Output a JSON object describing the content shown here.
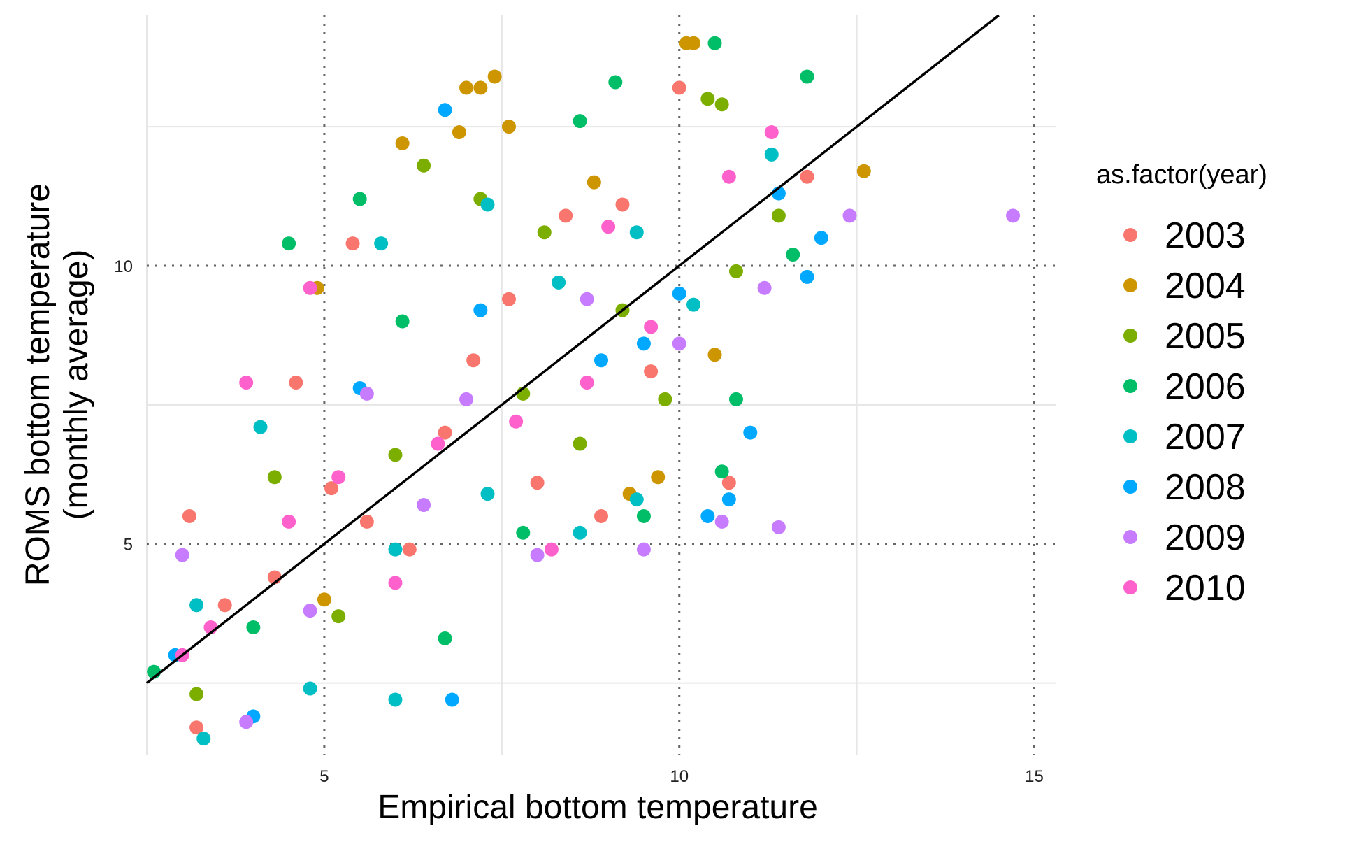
{
  "chart_data": {
    "type": "scatter",
    "xlabel": "Empirical bottom temperature",
    "ylabel_lines": [
      "ROMS bottom temperature",
      "(monthly average)"
    ],
    "xlim": [
      2.5,
      15.3
    ],
    "ylim": [
      1.2,
      14.5
    ],
    "x_ticks": [
      5,
      10,
      15
    ],
    "y_ticks": [
      5,
      10
    ],
    "x_tick_labels": [
      "5",
      "10",
      "15"
    ],
    "y_tick_labels": [
      "5",
      "10"
    ],
    "x_minor_grid": [
      2.5,
      7.5,
      12.5
    ],
    "y_minor_grid": [
      2.5,
      7.5,
      12.5
    ],
    "grid": "major dotted, minor solid light gray",
    "reference_line": {
      "slope": 1.0,
      "intercept": 0.0
    },
    "legend": {
      "title": "as.factor(year)",
      "placement": "right",
      "items": [
        {
          "label": "2003",
          "color": "#F8766D"
        },
        {
          "label": "2004",
          "color": "#CD9600"
        },
        {
          "label": "2005",
          "color": "#7CAE00"
        },
        {
          "label": "2006",
          "color": "#00BE67"
        },
        {
          "label": "2007",
          "color": "#00BFC4"
        },
        {
          "label": "2008",
          "color": "#00A9FF"
        },
        {
          "label": "2009",
          "color": "#C77CFF"
        },
        {
          "label": "2010",
          "color": "#FF61CC"
        }
      ]
    },
    "series": [
      {
        "name": "2003",
        "color": "#F8766D",
        "points": [
          [
            3.2,
            1.7
          ],
          [
            3.6,
            3.9
          ],
          [
            4.3,
            4.4
          ],
          [
            5.4,
            10.4
          ],
          [
            5.6,
            5.4
          ],
          [
            6.2,
            4.9
          ],
          [
            7.1,
            8.3
          ],
          [
            7.6,
            9.4
          ],
          [
            8.0,
            6.1
          ],
          [
            8.9,
            5.5
          ],
          [
            9.2,
            11.1
          ],
          [
            10.0,
            13.2
          ],
          [
            10.7,
            6.1
          ],
          [
            11.8,
            11.6
          ],
          [
            3.1,
            5.5
          ],
          [
            4.6,
            7.9
          ],
          [
            5.1,
            6.0
          ],
          [
            6.7,
            7.0
          ],
          [
            8.4,
            10.9
          ],
          [
            9.6,
            8.1
          ]
        ]
      },
      {
        "name": "2004",
        "color": "#CD9600",
        "points": [
          [
            7.0,
            13.2
          ],
          [
            7.2,
            13.2
          ],
          [
            7.4,
            13.4
          ],
          [
            6.9,
            12.4
          ],
          [
            10.2,
            14.0
          ],
          [
            10.1,
            14.0
          ],
          [
            12.6,
            11.7
          ],
          [
            4.9,
            9.6
          ],
          [
            6.1,
            12.2
          ],
          [
            7.6,
            12.5
          ],
          [
            8.8,
            11.5
          ],
          [
            9.7,
            6.2
          ],
          [
            9.3,
            5.9
          ],
          [
            10.5,
            8.4
          ],
          [
            5.0,
            4.0
          ]
        ]
      },
      {
        "name": "2005",
        "color": "#7CAE00",
        "points": [
          [
            3.2,
            2.3
          ],
          [
            6.4,
            11.8
          ],
          [
            7.2,
            11.2
          ],
          [
            8.1,
            10.6
          ],
          [
            10.4,
            13.0
          ],
          [
            10.6,
            12.9
          ],
          [
            11.4,
            10.9
          ],
          [
            5.2,
            3.7
          ],
          [
            9.2,
            9.2
          ],
          [
            7.8,
            7.7
          ],
          [
            6.0,
            6.6
          ],
          [
            10.8,
            9.9
          ],
          [
            4.3,
            6.2
          ],
          [
            8.6,
            6.8
          ],
          [
            9.8,
            7.6
          ]
        ]
      },
      {
        "name": "2006",
        "color": "#00BE67",
        "points": [
          [
            2.6,
            2.7
          ],
          [
            4.5,
            10.4
          ],
          [
            5.5,
            11.2
          ],
          [
            8.6,
            12.6
          ],
          [
            9.1,
            13.3
          ],
          [
            10.5,
            14.0
          ],
          [
            11.8,
            13.4
          ],
          [
            10.8,
            7.6
          ],
          [
            10.6,
            6.3
          ],
          [
            11.6,
            10.2
          ],
          [
            4.0,
            3.5
          ],
          [
            6.1,
            9.0
          ],
          [
            7.8,
            5.2
          ],
          [
            9.5,
            5.5
          ],
          [
            6.7,
            3.3
          ]
        ]
      },
      {
        "name": "2007",
        "color": "#00BFC4",
        "points": [
          [
            3.3,
            1.5
          ],
          [
            4.1,
            7.1
          ],
          [
            5.8,
            10.4
          ],
          [
            7.3,
            11.1
          ],
          [
            8.3,
            9.7
          ],
          [
            9.4,
            10.6
          ],
          [
            10.2,
            9.3
          ],
          [
            3.2,
            3.9
          ],
          [
            6.0,
            4.9
          ],
          [
            7.3,
            5.9
          ],
          [
            8.6,
            5.2
          ],
          [
            4.8,
            2.4
          ],
          [
            6.0,
            2.2
          ],
          [
            9.4,
            5.8
          ],
          [
            11.3,
            12.0
          ]
        ]
      },
      {
        "name": "2008",
        "color": "#00A9FF",
        "points": [
          [
            2.9,
            3.0
          ],
          [
            6.7,
            12.8
          ],
          [
            9.5,
            8.6
          ],
          [
            10.4,
            5.5
          ],
          [
            10.7,
            5.8
          ],
          [
            11.0,
            7.0
          ],
          [
            11.4,
            11.3
          ],
          [
            12.0,
            10.5
          ],
          [
            6.8,
            2.2
          ],
          [
            7.2,
            9.2
          ],
          [
            5.5,
            7.8
          ],
          [
            8.9,
            8.3
          ],
          [
            10.0,
            9.5
          ],
          [
            11.8,
            9.8
          ],
          [
            4.0,
            1.9
          ]
        ]
      },
      {
        "name": "2009",
        "color": "#C77CFF",
        "points": [
          [
            14.7,
            10.9
          ],
          [
            12.4,
            10.9
          ],
          [
            11.4,
            5.3
          ],
          [
            10.6,
            5.4
          ],
          [
            9.5,
            4.9
          ],
          [
            3.0,
            4.8
          ],
          [
            5.6,
            7.7
          ],
          [
            7.0,
            7.6
          ],
          [
            8.7,
            9.4
          ],
          [
            10.0,
            8.6
          ],
          [
            6.4,
            5.7
          ],
          [
            11.2,
            9.6
          ],
          [
            8.0,
            4.8
          ],
          [
            4.8,
            3.8
          ],
          [
            3.9,
            1.8
          ]
        ]
      },
      {
        "name": "2010",
        "color": "#FF61CC",
        "points": [
          [
            3.0,
            3.0
          ],
          [
            3.4,
            3.5
          ],
          [
            4.5,
            5.4
          ],
          [
            5.2,
            6.2
          ],
          [
            6.6,
            6.8
          ],
          [
            7.7,
            7.2
          ],
          [
            8.7,
            7.9
          ],
          [
            9.6,
            8.9
          ],
          [
            11.3,
            12.4
          ],
          [
            10.7,
            11.6
          ],
          [
            6.0,
            4.3
          ],
          [
            8.2,
            4.9
          ],
          [
            4.8,
            9.6
          ],
          [
            3.9,
            7.9
          ],
          [
            9.0,
            10.7
          ]
        ]
      }
    ]
  }
}
